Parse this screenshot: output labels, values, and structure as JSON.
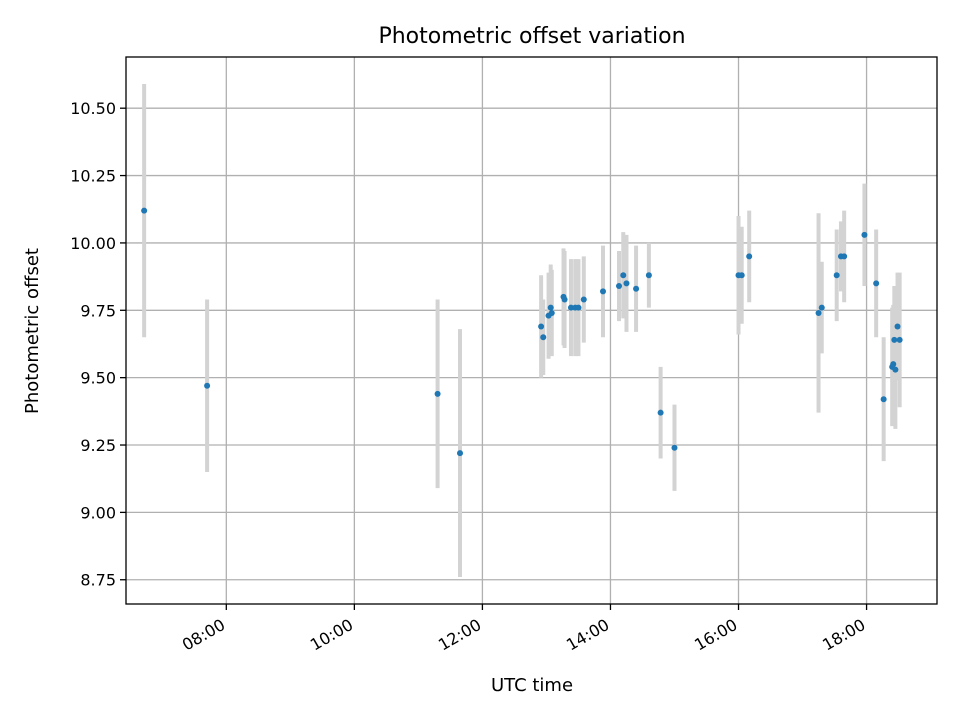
{
  "chart_data": {
    "type": "scatter",
    "title": "Photometric offset variation",
    "xlabel": "UTC time",
    "ylabel": "Photometric offset",
    "xlim": [
      "06:26",
      "19:06"
    ],
    "ylim": [
      8.66,
      10.69
    ],
    "x_ticks": [
      "08:00",
      "10:00",
      "12:00",
      "14:00",
      "16:00",
      "18:00"
    ],
    "y_ticks": [
      "8.75",
      "9.00",
      "9.25",
      "9.50",
      "9.75",
      "10.00",
      "10.25",
      "10.50"
    ],
    "grid": true,
    "colors": {
      "point": "#1f77b4",
      "errorbar": "#d3d3d3",
      "grid": "#b0b0b0",
      "axes": "#000000"
    },
    "series": [
      {
        "points": [
          {
            "x": "06:43",
            "y": 10.12,
            "err": 0.47
          },
          {
            "x": "07:42",
            "y": 9.47,
            "err": 0.32
          },
          {
            "x": "11:18",
            "y": 9.44,
            "err": 0.35
          },
          {
            "x": "11:39",
            "y": 9.22,
            "err": 0.46
          },
          {
            "x": "12:55",
            "y": 9.69,
            "err": 0.19
          },
          {
            "x": "12:57",
            "y": 9.65,
            "err": 0.14
          },
          {
            "x": "13:02",
            "y": 9.73,
            "err": 0.16
          },
          {
            "x": "13:04",
            "y": 9.76,
            "err": 0.16
          },
          {
            "x": "13:05",
            "y": 9.74,
            "err": 0.16
          },
          {
            "x": "13:16",
            "y": 9.8,
            "err": 0.18
          },
          {
            "x": "13:17",
            "y": 9.79,
            "err": 0.18
          },
          {
            "x": "13:23",
            "y": 9.76,
            "err": 0.18
          },
          {
            "x": "13:27",
            "y": 9.76,
            "err": 0.18
          },
          {
            "x": "13:30",
            "y": 9.76,
            "err": 0.18
          },
          {
            "x": "13:35",
            "y": 9.79,
            "err": 0.16
          },
          {
            "x": "13:53",
            "y": 9.82,
            "err": 0.17
          },
          {
            "x": "14:08",
            "y": 9.84,
            "err": 0.13
          },
          {
            "x": "14:12",
            "y": 9.88,
            "err": 0.16
          },
          {
            "x": "14:15",
            "y": 9.85,
            "err": 0.18
          },
          {
            "x": "14:24",
            "y": 9.83,
            "err": 0.16
          },
          {
            "x": "14:36",
            "y": 9.88,
            "err": 0.12
          },
          {
            "x": "14:47",
            "y": 9.37,
            "err": 0.17
          },
          {
            "x": "15:00",
            "y": 9.24,
            "err": 0.16
          },
          {
            "x": "16:00",
            "y": 9.88,
            "err": 0.22
          },
          {
            "x": "16:03",
            "y": 9.88,
            "err": 0.18
          },
          {
            "x": "16:10",
            "y": 9.95,
            "err": 0.17
          },
          {
            "x": "17:15",
            "y": 9.74,
            "err": 0.37
          },
          {
            "x": "17:18",
            "y": 9.76,
            "err": 0.17
          },
          {
            "x": "17:32",
            "y": 9.88,
            "err": 0.17
          },
          {
            "x": "17:36",
            "y": 9.95,
            "err": 0.13
          },
          {
            "x": "17:39",
            "y": 9.95,
            "err": 0.17
          },
          {
            "x": "17:58",
            "y": 10.03,
            "err": 0.19
          },
          {
            "x": "18:09",
            "y": 9.85,
            "err": 0.2
          },
          {
            "x": "18:16",
            "y": 9.42,
            "err": 0.23
          },
          {
            "x": "18:24",
            "y": 9.54,
            "err": 0.22
          },
          {
            "x": "18:25",
            "y": 9.55,
            "err": 0.22
          },
          {
            "x": "18:26",
            "y": 9.64,
            "err": 0.2
          },
          {
            "x": "18:27",
            "y": 9.53,
            "err": 0.22
          },
          {
            "x": "18:29",
            "y": 9.69,
            "err": 0.2
          },
          {
            "x": "18:31",
            "y": 9.64,
            "err": 0.25
          }
        ]
      }
    ]
  }
}
